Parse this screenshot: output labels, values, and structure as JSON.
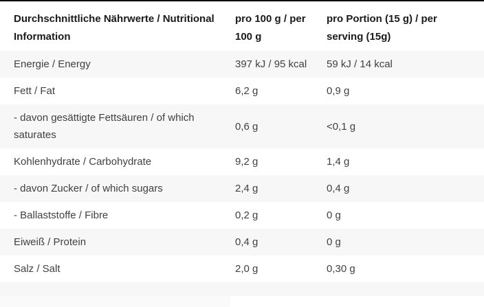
{
  "table": {
    "header": {
      "col_label": "Durchschnittliche Nährwerte / Nutritional Information",
      "col_per100": "pro 100 g / per 100 g",
      "col_portion": "pro Portion (15 g) / per serving (15g)"
    },
    "rows": [
      {
        "label": "Energie / Energy",
        "per100": "397 kJ / 95 kcal",
        "portion": "59 kJ / 14 kcal"
      },
      {
        "label": "Fett / Fat",
        "per100": "6,2 g",
        "portion": "0,9 g"
      },
      {
        "label": "- davon gesättigte Fettsäuren / of which saturates",
        "per100": "0,6 g",
        "portion": "<0,1 g"
      },
      {
        "label": "Kohlenhydrate / Carbohydrate",
        "per100": "9,2 g",
        "portion": "1,4 g"
      },
      {
        "label": "- davon Zucker / of which sugars",
        "per100": "2,4 g",
        "portion": "0,4 g"
      },
      {
        "label": "- Ballaststoffe / Fibre",
        "per100": "0,2 g",
        "portion": "0 g"
      },
      {
        "label": "Eiweiß / Protein",
        "per100": "0,4 g",
        "portion": "0 g"
      },
      {
        "label": "Salz / Salt",
        "per100": "2,0 g",
        "portion": "0,30 g"
      }
    ],
    "colors": {
      "stripe": "#f7f7f7",
      "header_text": "#1a1a1a",
      "body_text": "#404040",
      "top_border": "#000000",
      "footer_block": "#fafafa"
    }
  }
}
